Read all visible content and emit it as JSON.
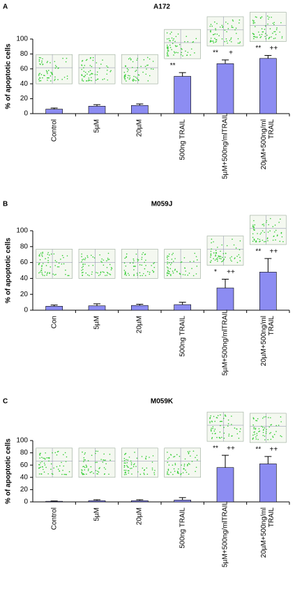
{
  "chart_data": [
    {
      "type": "bar",
      "panel": "A",
      "title": "A172",
      "y_label": "% of apoptotic cells",
      "categories": [
        "Control",
        "5µM",
        "20µM",
        "500ng TRAIL",
        "5µM+500ng/mlTRAIL",
        "20µM+500ng/ml TRAIL"
      ],
      "values": [
        6,
        10,
        11,
        50,
        67,
        74
      ],
      "errors": [
        1.5,
        2,
        2,
        5,
        5,
        4
      ],
      "annotations": [
        null,
        null,
        null,
        [
          "**"
        ],
        [
          "**",
          "+"
        ],
        [
          "**",
          "++"
        ]
      ],
      "color": "#8c8cf2",
      "ylim": [
        0,
        100
      ],
      "yticks": [
        0,
        20,
        40,
        60,
        80,
        100
      ]
    },
    {
      "type": "bar",
      "panel": "B",
      "title": "M059J",
      "y_label": "% of apoptotic cells",
      "categories": [
        "Con",
        "5µM",
        "20µM",
        "500ng TRAIL",
        "5µM+500ng/mlTRAIL",
        "20µM+500ng/ml TRAIL"
      ],
      "values": [
        5,
        5.5,
        6,
        7,
        28,
        48
      ],
      "errors": [
        1.5,
        2.5,
        1.5,
        3,
        11,
        17
      ],
      "annotations": [
        null,
        null,
        null,
        null,
        [
          "*",
          "++"
        ],
        [
          "**",
          "++"
        ]
      ],
      "color": "#8c8cf2",
      "ylim": [
        0,
        100
      ],
      "yticks": [
        0,
        20,
        40,
        60,
        80,
        100
      ]
    },
    {
      "type": "bar",
      "panel": "C",
      "title": "M059K",
      "y_label": "% of apoptotic cells",
      "categories": [
        "Control",
        "5µM",
        "20µM",
        "500ng TRAIL",
        "5µM+500ng/mlTRAIL",
        "20µM+500ng/ml TRAIL"
      ],
      "values": [
        1,
        2,
        2,
        3,
        56,
        62
      ],
      "errors": [
        0.5,
        1.5,
        1.5,
        4,
        20,
        12
      ],
      "annotations": [
        null,
        null,
        null,
        null,
        [
          "**",
          "++"
        ],
        [
          "**",
          "++"
        ]
      ],
      "color": "#8c8cf2",
      "ylim": [
        0,
        100
      ],
      "yticks": [
        0,
        20,
        40,
        60,
        80,
        100
      ]
    }
  ]
}
